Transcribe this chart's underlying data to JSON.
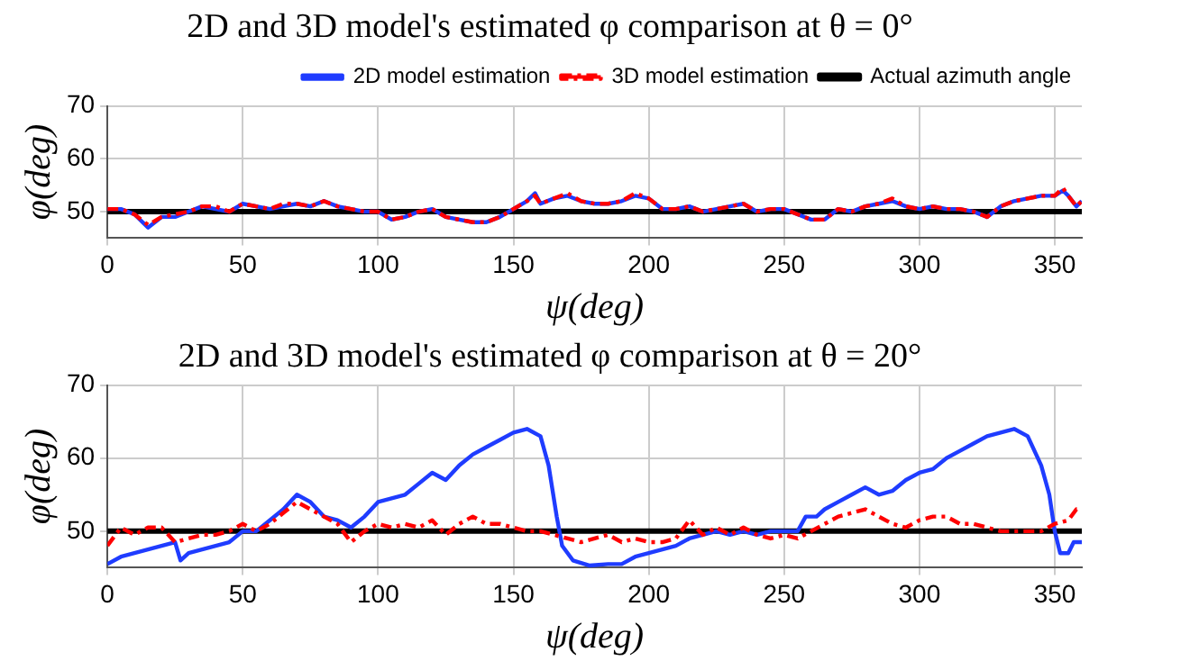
{
  "chart_data": [
    {
      "type": "line",
      "title": "2D and 3D model's estimated φ comparison at θ = 0°",
      "xlabel": "ψ(deg)",
      "ylabel": "φ(deg)",
      "xlim": [
        0,
        360
      ],
      "ylim": [
        45,
        70
      ],
      "xticks": [
        0,
        50,
        100,
        150,
        200,
        250,
        300,
        350
      ],
      "yticks": [
        50,
        60,
        70
      ],
      "grid": true,
      "legend": "top right",
      "marker": "none",
      "series": [
        {
          "name": "2D model estimation",
          "color": "#1f3cff",
          "line_style": "solid",
          "x": [
            0,
            5,
            10,
            15,
            20,
            25,
            30,
            35,
            40,
            45,
            50,
            55,
            60,
            65,
            70,
            75,
            80,
            85,
            90,
            95,
            100,
            105,
            110,
            115,
            120,
            125,
            130,
            135,
            140,
            145,
            150,
            155,
            158,
            160,
            165,
            170,
            175,
            180,
            185,
            190,
            195,
            200,
            205,
            210,
            215,
            220,
            225,
            230,
            235,
            240,
            245,
            250,
            255,
            260,
            265,
            270,
            275,
            280,
            285,
            290,
            295,
            300,
            305,
            310,
            315,
            320,
            325,
            330,
            335,
            340,
            345,
            350,
            353,
            355,
            358,
            360
          ],
          "values": [
            50.5,
            50.5,
            49.5,
            47,
            49,
            49,
            50,
            51,
            50.5,
            50,
            51.5,
            51,
            50.5,
            51,
            51.5,
            51,
            52,
            51,
            50.5,
            50,
            50,
            48.5,
            49,
            50,
            50.5,
            49,
            48.5,
            48,
            48,
            49,
            50.5,
            52,
            53.5,
            51.5,
            52.5,
            53,
            52,
            51.5,
            51.5,
            52,
            53,
            52.5,
            50.5,
            50.5,
            51,
            50,
            50.5,
            51,
            51.5,
            50,
            50.5,
            50.5,
            49.5,
            48.5,
            48.5,
            50.5,
            50,
            51,
            51.5,
            52,
            51,
            50.5,
            51,
            50.5,
            50.5,
            50,
            49,
            51,
            52,
            52.5,
            53,
            53,
            54,
            53,
            51,
            52
          ]
        },
        {
          "name": "3D model estimation",
          "color": "#ff0000",
          "line_style": "dashed",
          "x": [
            0,
            5,
            10,
            15,
            20,
            25,
            30,
            35,
            40,
            45,
            50,
            55,
            60,
            65,
            70,
            75,
            80,
            85,
            90,
            95,
            100,
            105,
            110,
            115,
            120,
            125,
            130,
            135,
            140,
            145,
            150,
            155,
            158,
            160,
            165,
            170,
            175,
            180,
            185,
            190,
            195,
            200,
            205,
            210,
            215,
            220,
            225,
            230,
            235,
            240,
            245,
            250,
            255,
            260,
            265,
            270,
            275,
            280,
            285,
            290,
            295,
            300,
            305,
            310,
            315,
            320,
            325,
            330,
            335,
            340,
            345,
            350,
            353,
            355,
            358,
            360
          ],
          "values": [
            50.5,
            50.5,
            49.5,
            47.5,
            49,
            49.5,
            50,
            51,
            51,
            50,
            51.5,
            51,
            50.5,
            51.5,
            51.5,
            51,
            52,
            51,
            50.5,
            50,
            50,
            48.5,
            49,
            50,
            50.5,
            49,
            48.5,
            48,
            48,
            49,
            50.5,
            52,
            53,
            51.5,
            52.5,
            53.5,
            52,
            51.5,
            51.5,
            52,
            53.5,
            52.5,
            50.5,
            50.5,
            51,
            50,
            50.5,
            51,
            51.5,
            50,
            50.5,
            50.5,
            49.5,
            48.5,
            48.5,
            50.5,
            50,
            51,
            51.5,
            52.5,
            51,
            50.5,
            51,
            50.5,
            50.5,
            50,
            49,
            51,
            52,
            52.5,
            53,
            53,
            54.5,
            53,
            51,
            52
          ]
        },
        {
          "name": "Actual azimuth angle",
          "color": "#000000",
          "line_style": "solid",
          "x": [
            0,
            360
          ],
          "values": [
            50,
            50
          ]
        }
      ]
    },
    {
      "type": "line",
      "title": "2D and 3D model's estimated φ comparison at θ = 20°",
      "xlabel": "ψ(deg)",
      "ylabel": "φ(deg)",
      "xlim": [
        0,
        360
      ],
      "ylim": [
        45,
        70
      ],
      "xticks": [
        0,
        50,
        100,
        150,
        200,
        250,
        300,
        350
      ],
      "yticks": [
        50,
        60,
        70
      ],
      "grid": true,
      "marker": "none",
      "series": [
        {
          "color": "#1f3cff",
          "line_style": "solid",
          "x": [
            0,
            5,
            10,
            15,
            20,
            25,
            27,
            30,
            35,
            40,
            45,
            50,
            55,
            60,
            65,
            70,
            75,
            80,
            85,
            90,
            95,
            100,
            105,
            110,
            115,
            120,
            125,
            130,
            135,
            140,
            145,
            150,
            155,
            160,
            163,
            166,
            168,
            172,
            178,
            185,
            190,
            195,
            200,
            205,
            210,
            215,
            220,
            225,
            230,
            235,
            240,
            245,
            250,
            255,
            258,
            262,
            265,
            270,
            275,
            280,
            285,
            290,
            295,
            300,
            305,
            310,
            315,
            320,
            325,
            330,
            335,
            340,
            345,
            348,
            350,
            352,
            355,
            357,
            360
          ],
          "values": [
            45.5,
            46.5,
            47,
            47.5,
            48,
            48.5,
            46,
            47,
            47.5,
            48,
            48.5,
            50,
            50,
            51.5,
            53,
            55,
            54,
            52,
            51.5,
            50.5,
            52,
            54,
            54.5,
            55,
            56.5,
            58,
            57,
            59,
            60.5,
            61.5,
            62.5,
            63.5,
            64,
            63,
            59,
            52,
            48,
            46,
            45.3,
            45.5,
            45.5,
            46.5,
            47,
            47.5,
            48,
            49,
            49.5,
            50,
            49.5,
            50,
            49.5,
            50,
            50,
            50,
            52,
            52,
            53,
            54,
            55,
            56,
            55,
            55.5,
            57,
            58,
            58.5,
            60,
            61,
            62,
            63,
            63.5,
            64,
            63,
            59,
            55,
            50,
            47,
            47,
            48.5,
            48.5
          ]
        },
        {
          "color": "#ff0000",
          "line_style": "dashed",
          "x": [
            0,
            5,
            10,
            15,
            20,
            25,
            30,
            35,
            40,
            45,
            50,
            55,
            60,
            65,
            70,
            75,
            80,
            85,
            90,
            95,
            100,
            105,
            110,
            115,
            120,
            125,
            130,
            135,
            140,
            145,
            150,
            155,
            160,
            165,
            170,
            175,
            180,
            185,
            190,
            195,
            200,
            205,
            210,
            215,
            220,
            225,
            230,
            235,
            240,
            245,
            250,
            255,
            260,
            265,
            270,
            275,
            280,
            285,
            290,
            295,
            300,
            305,
            310,
            315,
            320,
            325,
            330,
            335,
            340,
            345,
            350,
            355,
            358,
            360
          ],
          "values": [
            48,
            50.5,
            49.5,
            50.5,
            50.5,
            48.5,
            49,
            49.5,
            49.5,
            50,
            51,
            50,
            51,
            52.5,
            54,
            53,
            52,
            51,
            48.5,
            50,
            51,
            50.5,
            51,
            50.5,
            51.5,
            49.5,
            51,
            52,
            51,
            51,
            50.5,
            50,
            50,
            49.5,
            49,
            48.5,
            49,
            49.5,
            48.5,
            49,
            48.5,
            48.5,
            49,
            51.5,
            49.5,
            50.5,
            49.5,
            50.5,
            49.5,
            49,
            49.5,
            49,
            50,
            51,
            52,
            52.5,
            53,
            52,
            51,
            50.5,
            51.5,
            52,
            52,
            51,
            51,
            50.5,
            50,
            50,
            50,
            50,
            51,
            51.5,
            53,
            53
          ]
        },
        {
          "color": "#000000",
          "line_style": "solid",
          "x": [
            0,
            360
          ],
          "values": [
            50,
            50
          ]
        }
      ]
    }
  ]
}
